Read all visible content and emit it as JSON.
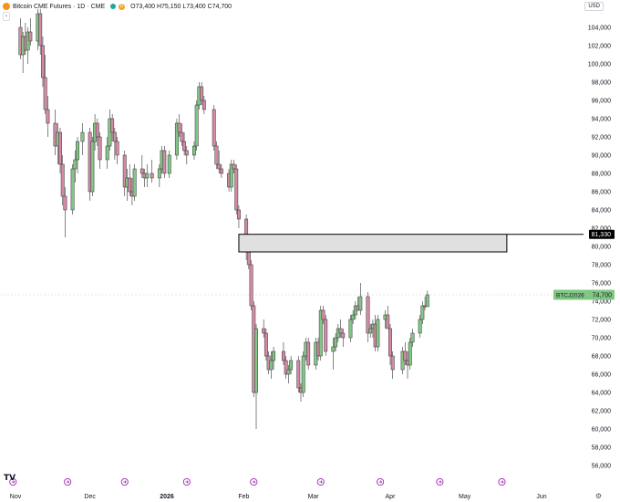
{
  "header": {
    "title": "Bitcoin CME Futures · 1D · CME",
    "badge": "D",
    "ohlc": "O73,400 H75,150 L73,400 C74,700"
  },
  "collapse_label": "‹",
  "currency": "USD",
  "logo": "TV",
  "icons": {
    "coin": "bitcoin-icon",
    "live": "market-open-icon",
    "events": "event-icon",
    "settings": "gear-icon"
  },
  "colors": {
    "up": "#81c784",
    "down": "#d48aa6",
    "zone_fill": "#e0e0e0",
    "zone_border": "#000000",
    "price_label": "#81c784",
    "level_label": "#000000"
  },
  "chart_data": {
    "type": "candlestick",
    "title": "Bitcoin CME Futures",
    "timeframe": "1D",
    "exchange": "CME",
    "ylim": [
      54000,
      106000
    ],
    "y_ticks": [
      56000,
      58000,
      60000,
      62000,
      64000,
      66000,
      68000,
      70000,
      72000,
      74000,
      76000,
      78000,
      80000,
      82000,
      84000,
      86000,
      88000,
      90000,
      92000,
      94000,
      96000,
      98000,
      100000,
      102000,
      104000
    ],
    "y_tick_labels": [
      "56,000",
      "58,000",
      "60,000",
      "62,000",
      "64,000",
      "66,000",
      "68,000",
      "70,000",
      "72,000",
      "74,000",
      "76,000",
      "78,000",
      "80,000",
      "82,000",
      "84,000",
      "86,000",
      "88,000",
      "90,000",
      "92,000",
      "94,000",
      "96,000",
      "98,000",
      "100,000",
      "102,000",
      "104,000"
    ],
    "x_labels": [
      {
        "date": "2025-11-01",
        "label": "Nov"
      },
      {
        "date": "2025-12-01",
        "label": "Dec"
      },
      {
        "date": "2026-01-01",
        "label": "2026"
      },
      {
        "date": "2026-02-01",
        "label": "Feb"
      },
      {
        "date": "2026-03-01",
        "label": "Mar"
      },
      {
        "date": "2026-04-01",
        "label": "Apr"
      },
      {
        "date": "2026-05-01",
        "label": "May"
      },
      {
        "date": "2026-06-01",
        "label": "Jun"
      }
    ],
    "zone": {
      "top": 81330,
      "bottom": 79400,
      "start": "2026-01-30",
      "end": "2026-05-18"
    },
    "level": {
      "value": 81330,
      "label": "81,330"
    },
    "last_price": {
      "value": 74700,
      "label": "74,700",
      "symbol": "BTCJ2026"
    },
    "event_markers": [
      "2025-10-31",
      "2025-11-22",
      "2025-12-15",
      "2026-01-09",
      "2026-02-05",
      "2026-03-04",
      "2026-03-28",
      "2026-04-21",
      "2026-05-16"
    ],
    "candles": [
      [
        "2025-11-03",
        104000,
        105000,
        100500,
        101000
      ],
      [
        "2025-11-04",
        101000,
        103500,
        99000,
        103000
      ],
      [
        "2025-11-05",
        103000,
        104500,
        101000,
        101500
      ],
      [
        "2025-11-06",
        101500,
        104000,
        100000,
        103500
      ],
      [
        "2025-11-07",
        103500,
        105000,
        102000,
        102500
      ],
      [
        "2025-11-10",
        102500,
        106000,
        101500,
        105500
      ],
      [
        "2025-11-11",
        105500,
        106000,
        101000,
        102000
      ],
      [
        "2025-11-12",
        102000,
        103000,
        97500,
        98500
      ],
      [
        "2025-11-13",
        98500,
        101000,
        94500,
        95000
      ],
      [
        "2025-11-14",
        95000,
        96500,
        92000,
        93500
      ],
      [
        "2025-11-17",
        93500,
        95000,
        90000,
        91000
      ],
      [
        "2025-11-18",
        91000,
        93500,
        89000,
        92500
      ],
      [
        "2025-11-19",
        92500,
        93000,
        88000,
        89000
      ],
      [
        "2025-11-20",
        89000,
        90000,
        84500,
        85500
      ],
      [
        "2025-11-21",
        85500,
        86500,
        81000,
        84000
      ],
      [
        "2025-11-24",
        84000,
        89000,
        83500,
        88500
      ],
      [
        "2025-11-25",
        88500,
        90500,
        87000,
        89500
      ],
      [
        "2025-11-26",
        89500,
        92000,
        88000,
        91500
      ],
      [
        "2025-11-28",
        91500,
        93500,
        90000,
        92500
      ],
      [
        "2025-12-01",
        92500,
        93000,
        85000,
        86000
      ],
      [
        "2025-12-02",
        86000,
        92000,
        85500,
        91500
      ],
      [
        "2025-12-03",
        91500,
        94500,
        90500,
        93500
      ],
      [
        "2025-12-04",
        93500,
        94000,
        91000,
        92000
      ],
      [
        "2025-12-05",
        92000,
        92500,
        88500,
        89500
      ],
      [
        "2025-12-08",
        89500,
        92000,
        88500,
        91000
      ],
      [
        "2025-12-09",
        91000,
        95000,
        90500,
        94000
      ],
      [
        "2025-12-10",
        94000,
        94500,
        91500,
        92500
      ],
      [
        "2025-12-11",
        92500,
        93000,
        89500,
        91500
      ],
      [
        "2025-12-12",
        91500,
        92000,
        89000,
        90000
      ],
      [
        "2025-12-15",
        90000,
        90500,
        85500,
        86500
      ],
      [
        "2025-12-16",
        86500,
        88500,
        85000,
        87500
      ],
      [
        "2025-12-17",
        87500,
        89000,
        85500,
        86000
      ],
      [
        "2025-12-18",
        86000,
        87500,
        84500,
        85500
      ],
      [
        "2025-12-19",
        85500,
        89000,
        85000,
        88500
      ],
      [
        "2025-12-22",
        88500,
        90000,
        87500,
        88000
      ],
      [
        "2025-12-23",
        88000,
        88500,
        86500,
        87500
      ],
      [
        "2025-12-24",
        87500,
        89000,
        86500,
        88000
      ],
      [
        "2025-12-26",
        88000,
        89500,
        87000,
        87500
      ],
      [
        "2025-12-29",
        87500,
        89000,
        86500,
        88500
      ],
      [
        "2025-12-30",
        88500,
        91000,
        88000,
        90500
      ],
      [
        "2025-12-31",
        90500,
        91000,
        87500,
        88000
      ],
      [
        "2026-01-02",
        88000,
        90500,
        87500,
        90000
      ],
      [
        "2026-01-05",
        90000,
        94000,
        89500,
        93500
      ],
      [
        "2026-01-06",
        93500,
        94500,
        92000,
        92500
      ],
      [
        "2026-01-07",
        92500,
        93500,
        91000,
        91500
      ],
      [
        "2026-01-08",
        91500,
        92500,
        90000,
        90500
      ],
      [
        "2026-01-09",
        90500,
        91000,
        89000,
        90000
      ],
      [
        "2026-01-12",
        90000,
        91500,
        89500,
        91000
      ],
      [
        "2026-01-13",
        91000,
        96000,
        90500,
        95500
      ],
      [
        "2026-01-14",
        95500,
        98000,
        95000,
        97500
      ],
      [
        "2026-01-15",
        97500,
        98000,
        95500,
        96000
      ],
      [
        "2026-01-16",
        96000,
        96500,
        94500,
        95000
      ],
      [
        "2026-01-20",
        95000,
        95500,
        90500,
        91000
      ],
      [
        "2026-01-21",
        91000,
        91500,
        88500,
        89000
      ],
      [
        "2026-01-22",
        89000,
        90500,
        88000,
        88500
      ],
      [
        "2026-01-23",
        88500,
        89000,
        87500,
        88000
      ],
      [
        "2026-01-26",
        88000,
        88500,
        86000,
        86500
      ],
      [
        "2026-01-27",
        86500,
        89500,
        86000,
        89000
      ],
      [
        "2026-01-28",
        89000,
        89500,
        88000,
        88500
      ],
      [
        "2026-01-29",
        88500,
        89000,
        83500,
        84000
      ],
      [
        "2026-01-30",
        84000,
        84500,
        82000,
        83000
      ],
      [
        "2026-02-02",
        83000,
        83500,
        78500,
        79500
      ],
      [
        "2026-02-03",
        79500,
        79500,
        77500,
        78000
      ],
      [
        "2026-02-04",
        78000,
        78500,
        73000,
        73500
      ],
      [
        "2026-02-05",
        73500,
        74000,
        63500,
        64000
      ],
      [
        "2026-02-06",
        64000,
        71500,
        60000,
        71000
      ],
      [
        "2026-02-09",
        71000,
        72000,
        70000,
        70500
      ],
      [
        "2026-02-10",
        70500,
        71000,
        67500,
        68000
      ],
      [
        "2026-02-11",
        68000,
        68500,
        66000,
        66500
      ],
      [
        "2026-02-12",
        66500,
        68500,
        65500,
        67500
      ],
      [
        "2026-02-13",
        67500,
        69000,
        66500,
        68500
      ],
      [
        "2026-02-17",
        68500,
        69500,
        67000,
        67500
      ],
      [
        "2026-02-18",
        67500,
        68000,
        65500,
        66000
      ],
      [
        "2026-02-19",
        66000,
        67000,
        65000,
        66500
      ],
      [
        "2026-02-20",
        66500,
        68000,
        66000,
        67500
      ],
      [
        "2026-02-23",
        67500,
        68000,
        64000,
        64500
      ],
      [
        "2026-02-24",
        64500,
        65000,
        63000,
        64000
      ],
      [
        "2026-02-25",
        64000,
        68500,
        63500,
        68000
      ],
      [
        "2026-02-26",
        68000,
        70000,
        67500,
        69500
      ],
      [
        "2026-02-27",
        69500,
        70000,
        66500,
        67000
      ],
      [
        "2026-03-02",
        67000,
        70000,
        66500,
        69500
      ],
      [
        "2026-03-03",
        69500,
        70000,
        67500,
        68000
      ],
      [
        "2026-03-04",
        68000,
        73500,
        67500,
        73000
      ],
      [
        "2026-03-05",
        73000,
        73500,
        71500,
        72000
      ],
      [
        "2026-03-06",
        72000,
        72500,
        68000,
        68500
      ],
      [
        "2026-03-09",
        68500,
        70000,
        66500,
        69000
      ],
      [
        "2026-03-10",
        69000,
        70500,
        68500,
        70000
      ],
      [
        "2026-03-11",
        70000,
        71500,
        69500,
        71000
      ],
      [
        "2026-03-12",
        71000,
        72000,
        70000,
        70500
      ],
      [
        "2026-03-13",
        70500,
        71000,
        69000,
        70000
      ],
      [
        "2026-03-16",
        70000,
        72500,
        69500,
        72000
      ],
      [
        "2026-03-17",
        72000,
        73000,
        71500,
        72500
      ],
      [
        "2026-03-18",
        72500,
        74000,
        72000,
        73500
      ],
      [
        "2026-03-19",
        73500,
        74500,
        73000,
        73000
      ],
      [
        "2026-03-20",
        73000,
        76000,
        72500,
        74500
      ],
      [
        "2026-03-23",
        74500,
        75000,
        69500,
        70500
      ],
      [
        "2026-03-24",
        70500,
        71500,
        70000,
        71000
      ],
      [
        "2026-03-25",
        71000,
        72000,
        70000,
        71500
      ],
      [
        "2026-03-26",
        71500,
        72500,
        68500,
        69000
      ],
      [
        "2026-03-27",
        69000,
        72500,
        68500,
        72000
      ],
      [
        "2026-03-30",
        72000,
        73000,
        71000,
        72500
      ],
      [
        "2026-03-31",
        72500,
        73500,
        71500,
        71000
      ],
      [
        "2026-04-01",
        71000,
        71500,
        67000,
        68000
      ],
      [
        "2026-04-02",
        68000,
        68500,
        65500,
        66500
      ],
      [
        "2026-04-06",
        66500,
        69000,
        66000,
        68500
      ],
      [
        "2026-04-07",
        68500,
        69500,
        67000,
        67500
      ],
      [
        "2026-04-08",
        67500,
        68500,
        65500,
        67000
      ],
      [
        "2026-04-09",
        67000,
        70000,
        66500,
        69500
      ],
      [
        "2026-04-10",
        69500,
        71000,
        69000,
        70500
      ],
      [
        "2026-04-13",
        70500,
        72500,
        70000,
        72000
      ],
      [
        "2026-04-14",
        72000,
        74000,
        71500,
        73500
      ],
      [
        "2026-04-15",
        73500,
        74500,
        73000,
        73400
      ],
      [
        "2026-04-16",
        73400,
        75150,
        73400,
        74700
      ]
    ]
  }
}
